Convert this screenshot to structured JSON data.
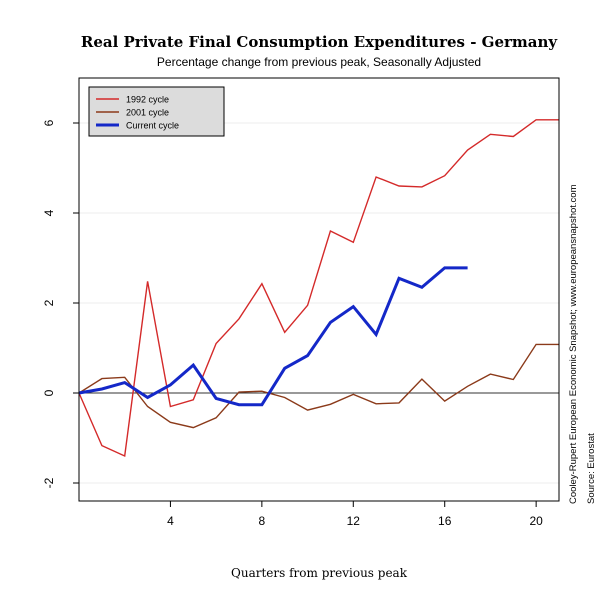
{
  "chart_data": {
    "type": "line",
    "title": "Real Private Final Consumption Expenditures - Germany",
    "subtitle": "Percentage change from previous peak, Seasonally Adjusted",
    "xlabel": "Quarters from previous peak",
    "ylabel": "",
    "xlim": [
      0,
      21
    ],
    "ylim": [
      -2.4,
      7.0
    ],
    "xticks": [
      4,
      8,
      12,
      16,
      20
    ],
    "yticks": [
      -2,
      0,
      2,
      4,
      6
    ],
    "grid": true,
    "legend_position": "top-left",
    "side_notes": [
      "Cooley-Rupert European Economic Snapshot; www.europeansnapshot.com",
      "Source: Eurostat"
    ],
    "series": [
      {
        "name": "1992 cycle",
        "color": "#d42a2a",
        "width": 1.4,
        "x": [
          0,
          1,
          2,
          3,
          4,
          5,
          6,
          7,
          8,
          9,
          10,
          11,
          12,
          13,
          14,
          15,
          16,
          17,
          18,
          19,
          20,
          21
        ],
        "y": [
          0,
          -1.17,
          -1.4,
          2.48,
          -0.3,
          -0.15,
          1.1,
          1.65,
          2.43,
          1.35,
          1.95,
          3.6,
          3.35,
          4.8,
          4.6,
          4.58,
          4.83,
          5.4,
          5.75,
          5.7,
          6.07,
          6.07
        ]
      },
      {
        "name": "2001 cycle",
        "color": "#8b3a1a",
        "width": 1.4,
        "x": [
          0,
          1,
          2,
          3,
          4,
          5,
          6,
          7,
          8,
          9,
          10,
          11,
          12,
          13,
          14,
          15,
          16,
          17,
          18,
          19,
          20,
          21
        ],
        "y": [
          0,
          0.32,
          0.35,
          -0.3,
          -0.65,
          -0.77,
          -0.55,
          0.02,
          0.04,
          -0.1,
          -0.38,
          -0.25,
          -0.03,
          -0.24,
          -0.22,
          0.31,
          -0.18,
          0.15,
          0.42,
          0.3,
          1.08,
          1.08
        ]
      },
      {
        "name": "Current cycle",
        "color": "#1428c8",
        "width": 3,
        "x": [
          0,
          1,
          2,
          3,
          4,
          5,
          6,
          7,
          8,
          9,
          10,
          11,
          12,
          13,
          14,
          15,
          16,
          17
        ],
        "y": [
          0,
          0.09,
          0.23,
          -0.1,
          0.18,
          0.62,
          -0.12,
          -0.26,
          -0.26,
          0.55,
          0.83,
          1.57,
          1.92,
          1.3,
          2.55,
          2.35,
          2.78,
          2.78
        ]
      }
    ]
  }
}
